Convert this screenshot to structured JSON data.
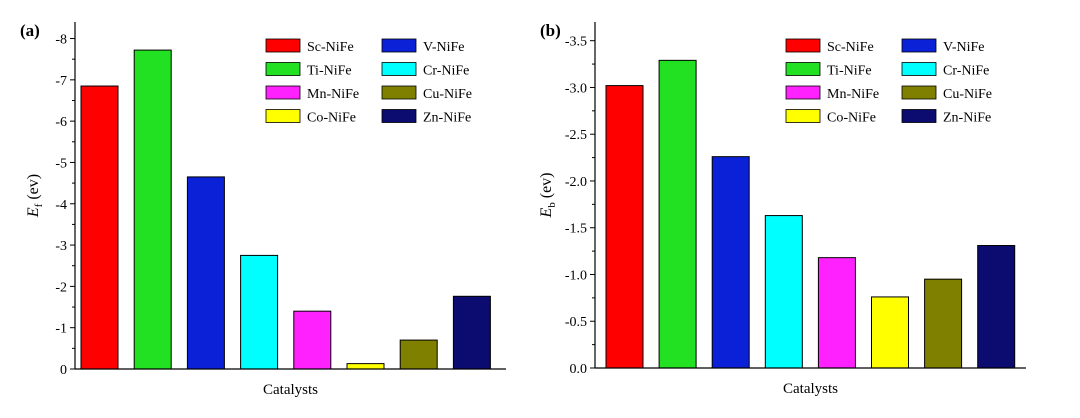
{
  "chart_data": [
    {
      "type": "bar",
      "panel_label": "(a)",
      "categories": [
        "Sc-NiFe",
        "Ti-NiFe",
        "V-NiFe",
        "Cr-NiFe",
        "Mn-NiFe",
        "Co-NiFe",
        "Cu-NiFe",
        "Zn-NiFe"
      ],
      "values": [
        -6.85,
        -7.72,
        -4.65,
        -2.75,
        -1.4,
        -0.13,
        -0.7,
        -1.76
      ],
      "colors": [
        "#ff0000",
        "#22e022",
        "#0a21d8",
        "#00ffff",
        "#ff22ff",
        "#ffff00",
        "#808000",
        "#0b0b70"
      ],
      "xlabel": "Catalysts",
      "ylabel_main": "E",
      "ylabel_sub": "f",
      "ylabel_unit": " (ev)",
      "ylim": [
        0,
        -8.4
      ],
      "yticks": [
        0,
        -1,
        -2,
        -3,
        -4,
        -5,
        -6,
        -7,
        -8
      ],
      "ytick_labels": [
        "0",
        "-1",
        "-2",
        "-3",
        "-4",
        "-5",
        "-6",
        "-7",
        "-8"
      ],
      "legend": [
        "Sc-NiFe",
        "V-NiFe",
        "Ti-NiFe",
        "Cr-NiFe",
        "Mn-NiFe",
        "Cu-NiFe",
        "Co-NiFe",
        "Zn-NiFe"
      ],
      "legend_colors": [
        "#ff0000",
        "#0a21d8",
        "#22e022",
        "#00ffff",
        "#ff22ff",
        "#808000",
        "#ffff00",
        "#0b0b70"
      ],
      "legend_placement": "top-right",
      "grid": false
    },
    {
      "type": "bar",
      "panel_label": "(b)",
      "categories": [
        "Sc-NiFe",
        "Ti-NiFe",
        "V-NiFe",
        "Cr-NiFe",
        "Mn-NiFe",
        "Co-NiFe",
        "Cu-NiFe",
        "Zn-NiFe"
      ],
      "values": [
        -3.02,
        -3.29,
        -2.26,
        -1.63,
        -1.18,
        -0.76,
        -0.95,
        -1.31
      ],
      "colors": [
        "#ff0000",
        "#22e022",
        "#0a21d8",
        "#00ffff",
        "#ff22ff",
        "#ffff00",
        "#808000",
        "#0b0b70"
      ],
      "xlabel": "Catalysts",
      "ylabel_main": "E",
      "ylabel_sub": "b",
      "ylabel_unit": " (ev)",
      "ylim": [
        0,
        -3.7
      ],
      "yticks": [
        0,
        -0.5,
        -1.0,
        -1.5,
        -2.0,
        -2.5,
        -3.0,
        -3.5
      ],
      "ytick_labels": [
        "0.0",
        "-0.5",
        "-1.0",
        "-1.5",
        "-2.0",
        "-2.5",
        "-3.0",
        "-3.5"
      ],
      "legend": [
        "Sc-NiFe",
        "V-NiFe",
        "Ti-NiFe",
        "Cr-NiFe",
        "Mn-NiFe",
        "Cu-NiFe",
        "Co-NiFe",
        "Zn-NiFe"
      ],
      "legend_colors": [
        "#ff0000",
        "#0a21d8",
        "#22e022",
        "#00ffff",
        "#ff22ff",
        "#808000",
        "#ffff00",
        "#0b0b70"
      ],
      "legend_placement": "top-right",
      "grid": false
    }
  ]
}
